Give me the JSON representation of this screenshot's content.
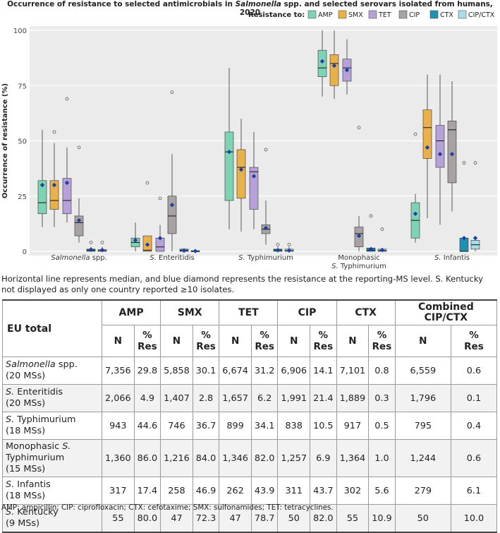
{
  "chart_data": {
    "type": "boxplot",
    "title_prefix": "Occurrence of resistance to selected antimicrobials in ",
    "title_italic": "Salmonella",
    "title_suffix": " spp. and selected serovars isolated from humans, 2020",
    "ylabel": "Occurrence of resistance (%)",
    "ylim": [
      0,
      100
    ],
    "yticks": [
      0,
      25,
      50,
      75,
      100
    ],
    "legend_title": "Resistance to:",
    "antimicrobials": [
      {
        "code": "AMP",
        "color": "#7fd3b5"
      },
      {
        "code": "SMX",
        "color": "#eab04a"
      },
      {
        "code": "TET",
        "color": "#b6a2d8"
      },
      {
        "code": "CIP",
        "color": "#a8a2a2"
      },
      {
        "code": "CTX",
        "color": "#1e90b0"
      },
      {
        "code": "CIP/CTX",
        "color": "#a8dcea"
      }
    ],
    "groups": [
      {
        "label_line1": "Salmonella spp.",
        "label_line2": "",
        "italic_part": "Salmonella",
        "boxes": [
          {
            "code": "AMP",
            "min": 11,
            "q1": 17,
            "median": 22,
            "q3": 32,
            "max": 55,
            "mean": 30,
            "outliers": []
          },
          {
            "code": "SMX",
            "min": 11,
            "q1": 19,
            "median": 23,
            "q3": 32,
            "max": 49,
            "mean": 30,
            "outliers": [
              54
            ]
          },
          {
            "code": "TET",
            "min": 13,
            "q1": 17,
            "median": 23,
            "q3": 33,
            "max": 47,
            "mean": 31,
            "outliers": [
              69
            ]
          },
          {
            "code": "CIP",
            "min": 4,
            "q1": 7,
            "median": 13,
            "q3": 16,
            "max": 24,
            "mean": 14,
            "outliers": [
              47
            ]
          },
          {
            "code": "CTX",
            "min": 0,
            "q1": 0,
            "median": 0.5,
            "q3": 1,
            "max": 2,
            "mean": 0.8,
            "outliers": [
              4
            ]
          },
          {
            "code": "CIP/CTX",
            "min": 0,
            "q1": 0,
            "median": 0.3,
            "q3": 0.8,
            "max": 2,
            "mean": 0.6,
            "outliers": [
              4
            ]
          }
        ]
      },
      {
        "label_line1": "S. Enteritidis",
        "label_line2": "",
        "italic_part": "S.",
        "boxes": [
          {
            "code": "AMP",
            "min": 0,
            "q1": 2,
            "median": 4,
            "q3": 6,
            "max": 13,
            "mean": 5,
            "outliers": []
          },
          {
            "code": "SMX",
            "min": 0,
            "q1": 0,
            "median": 0.5,
            "q3": 7,
            "max": 7,
            "mean": 3,
            "outliers": [
              31
            ]
          },
          {
            "code": "TET",
            "min": 0,
            "q1": 0,
            "median": 2,
            "q3": 6,
            "max": 12,
            "mean": 6,
            "outliers": [
              24
            ]
          },
          {
            "code": "CIP",
            "min": 0,
            "q1": 8,
            "median": 16,
            "q3": 25,
            "max": 44,
            "mean": 21,
            "outliers": [
              72
            ]
          },
          {
            "code": "CTX",
            "min": 0,
            "q1": 0,
            "median": 0.3,
            "q3": 1,
            "max": 1.5,
            "mean": 0.3,
            "outliers": []
          },
          {
            "code": "CIP/CTX",
            "min": 0,
            "q1": 0,
            "median": 0,
            "q3": 0.3,
            "max": 0.5,
            "mean": 0.1,
            "outliers": []
          }
        ]
      },
      {
        "label_line1": "S. Typhimurium",
        "label_line2": "",
        "italic_part": "S.",
        "boxes": [
          {
            "code": "AMP",
            "min": 10,
            "q1": 23,
            "median": 45,
            "q3": 54,
            "max": 83,
            "mean": 45,
            "outliers": []
          },
          {
            "code": "SMX",
            "min": 9,
            "q1": 24,
            "median": 38,
            "q3": 46,
            "max": 60,
            "mean": 37,
            "outliers": []
          },
          {
            "code": "TET",
            "min": 10,
            "q1": 19,
            "median": 36,
            "q3": 38,
            "max": 54,
            "mean": 34,
            "outliers": []
          },
          {
            "code": "CIP",
            "min": 3,
            "q1": 8,
            "median": 10,
            "q3": 12,
            "max": 23,
            "mean": 10.5,
            "outliers": [
              46
            ]
          },
          {
            "code": "CTX",
            "min": 0,
            "q1": 0,
            "median": 0.5,
            "q3": 1,
            "max": 2,
            "mean": 0.5,
            "outliers": [
              3
            ]
          },
          {
            "code": "CIP/CTX",
            "min": 0,
            "q1": 0,
            "median": 0.3,
            "q3": 1,
            "max": 2,
            "mean": 0.4,
            "outliers": [
              3
            ]
          }
        ]
      },
      {
        "label_line1": "Monophasic",
        "label_line2": "S. Typhimurium",
        "italic_part": "S.",
        "boxes": [
          {
            "code": "AMP",
            "min": 70,
            "q1": 79,
            "median": 83,
            "q3": 91,
            "max": 100,
            "mean": 86,
            "outliers": []
          },
          {
            "code": "SMX",
            "min": 69,
            "q1": 75,
            "median": 85,
            "q3": 89,
            "max": 100,
            "mean": 84,
            "outliers": []
          },
          {
            "code": "TET",
            "min": 71,
            "q1": 77,
            "median": 83,
            "q3": 87,
            "max": 96,
            "mean": 82,
            "outliers": []
          },
          {
            "code": "CIP",
            "min": 0,
            "q1": 2,
            "median": 8,
            "q3": 11,
            "max": 16,
            "mean": 7,
            "outliers": [
              56
            ]
          },
          {
            "code": "CTX",
            "min": 0,
            "q1": 0,
            "median": 0.5,
            "q3": 1.5,
            "max": 2,
            "mean": 1,
            "outliers": [
              16
            ]
          },
          {
            "code": "CIP/CTX",
            "min": 0,
            "q1": 0,
            "median": 0.3,
            "q3": 1,
            "max": 1.5,
            "mean": 0.6,
            "outliers": [
              10
            ]
          }
        ]
      },
      {
        "label_line1": "S. Infantis",
        "label_line2": "",
        "italic_part": "S.",
        "boxes": [
          {
            "code": "AMP",
            "min": 4,
            "q1": 6,
            "median": 14,
            "q3": 22,
            "max": 26,
            "mean": 17,
            "outliers": [
              53
            ]
          },
          {
            "code": "SMX",
            "min": 15,
            "q1": 42,
            "median": 56,
            "q3": 64,
            "max": 80,
            "mean": 47,
            "outliers": []
          },
          {
            "code": "TET",
            "min": 12,
            "q1": 38,
            "median": 50,
            "q3": 57,
            "max": 80,
            "mean": 44,
            "outliers": []
          },
          {
            "code": "CIP",
            "min": 18,
            "q1": 31,
            "median": 55,
            "q3": 59,
            "max": 77,
            "mean": 44,
            "outliers": []
          },
          {
            "code": "CTX",
            "min": 0,
            "q1": 0,
            "median": 0,
            "q3": 6,
            "max": 6,
            "mean": 6,
            "outliers": [
              40
            ]
          },
          {
            "code": "CIP/CTX",
            "min": 0,
            "q1": 1,
            "median": 3,
            "q3": 5,
            "max": 6,
            "mean": 6,
            "outliers": [
              40
            ]
          }
        ]
      }
    ]
  },
  "note": "Horizontal line represents median, and blue diamond represents the resistance at the reporting-MS level. S. Kentucky not displayed as only one country reported ≥10 isolates.",
  "table": {
    "header_label": "EU total",
    "groups": [
      "AMP",
      "SMX",
      "TET",
      "CIP",
      "CTX",
      "Combined CIP/CTX"
    ],
    "sub_n": "N",
    "sub_res": "% Res",
    "rows": [
      {
        "label_italic": "Salmonella",
        "label_rest": " spp.",
        "label_line2": "(20 MSs)",
        "values": [
          "7,356",
          "29.8",
          "5,858",
          "30.1",
          "6,674",
          "31.2",
          "6,906",
          "14.1",
          "7,101",
          "0.8",
          "6,559",
          "0.6"
        ]
      },
      {
        "label_italic": "S.",
        "label_rest": " Enteritidis",
        "label_line2": "(20 MSs)",
        "values": [
          "2,066",
          "4.9",
          "1,407",
          "2.8",
          "1,657",
          "6.2",
          "1,991",
          "21.4",
          "1,889",
          "0.3",
          "1,796",
          "0.1"
        ]
      },
      {
        "label_italic": "S.",
        "label_rest": " Typhimurium",
        "label_line2": "(18 MSs)",
        "values": [
          "943",
          "44.6",
          "746",
          "36.7",
          "899",
          "34.1",
          "838",
          "10.5",
          "917",
          "0.5",
          "795",
          "0.4"
        ]
      },
      {
        "label_pre": "Monophasic ",
        "label_italic": "S.",
        "label_rest": "",
        "label_line2": "Typhimurium",
        "label_line3": "(15 MSs)",
        "values": [
          "1,360",
          "86.0",
          "1,216",
          "84.0",
          "1,346",
          "82.0",
          "1,257",
          "6.9",
          "1,364",
          "1.0",
          "1,244",
          "0.6"
        ]
      },
      {
        "label_italic": "S.",
        "label_rest": " Infantis",
        "label_line2": "(18 MSs)",
        "values": [
          "317",
          "17.4",
          "258",
          "46.9",
          "262",
          "43.9",
          "311",
          "43.7",
          "302",
          "5.6",
          "279",
          "6.1"
        ]
      },
      {
        "label_italic": "S.",
        "label_rest": " Kentucky",
        "label_line2": "(9 MSs)",
        "values": [
          "55",
          "80.0",
          "47",
          "72.3",
          "47",
          "78.7",
          "50",
          "82.0",
          "55",
          "10.9",
          "50",
          "10.0"
        ]
      }
    ]
  },
  "abbreviations": "AMP: ampicillin; CIP: ciprofloxacin; CTX: cefotaxime; SMX: sulfonamides; TET: tetracyclines."
}
